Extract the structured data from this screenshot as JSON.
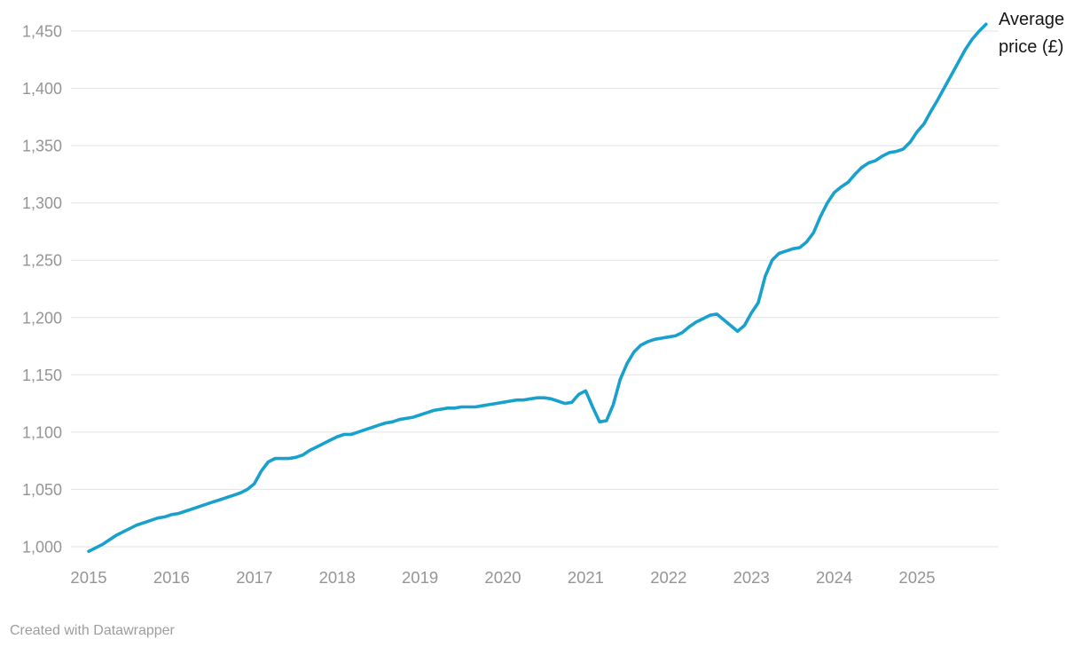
{
  "chart_data": {
    "type": "line",
    "title": "",
    "ylabel": "Average price (£)",
    "xlabel": "",
    "grid": "horizontal-only",
    "legend_position": "end-of-line direct label, top right",
    "line_color": "#18a1cd",
    "grid_color": "#e2e2e2",
    "tick_label_color": "#959595",
    "x_tick_labels": [
      "2015",
      "2016",
      "2017",
      "2018",
      "2019",
      "2020",
      "2021",
      "2022",
      "2023",
      "2024",
      "2025"
    ],
    "y_ticks": [
      1000,
      1050,
      1100,
      1150,
      1200,
      1250,
      1300,
      1350,
      1400,
      1450
    ],
    "y_tick_labels": [
      "1,000",
      "1,050",
      "1,100",
      "1,150",
      "1,200",
      "1,250",
      "1,300",
      "1,350",
      "1,400",
      "1,450"
    ],
    "ylim": [
      993,
      1464
    ],
    "xlim_years": [
      2015.0,
      2025.95
    ],
    "series": [
      {
        "name": "Average price (£)",
        "start": "2015-01",
        "end": "2025-11",
        "frequency": "monthly",
        "values": [
          996,
          999,
          1002,
          1006,
          1010,
          1013,
          1016,
          1019,
          1021,
          1023,
          1025,
          1026,
          1028,
          1029,
          1031,
          1033,
          1035,
          1037,
          1039,
          1041,
          1043,
          1045,
          1047,
          1050,
          1055,
          1066,
          1074,
          1077,
          1077,
          1077,
          1078,
          1080,
          1084,
          1087,
          1090,
          1093,
          1096,
          1098,
          1098,
          1100,
          1102,
          1104,
          1106,
          1108,
          1109,
          1111,
          1112,
          1113,
          1115,
          1117,
          1119,
          1120,
          1121,
          1121,
          1122,
          1122,
          1122,
          1123,
          1124,
          1125,
          1126,
          1127,
          1128,
          1128,
          1129,
          1130,
          1130,
          1129,
          1127,
          1125,
          1126,
          1133,
          1136,
          1122,
          1109,
          1110,
          1124,
          1146,
          1160,
          1170,
          1176,
          1179,
          1181,
          1182,
          1183,
          1184,
          1187,
          1192,
          1196,
          1199,
          1202,
          1203,
          1198,
          1193,
          1188,
          1193,
          1204,
          1213,
          1236,
          1250,
          1256,
          1258,
          1260,
          1261,
          1266,
          1274,
          1288,
          1300,
          1309,
          1314,
          1318,
          1325,
          1331,
          1335,
          1337,
          1341,
          1344,
          1345,
          1347,
          1353,
          1362,
          1369,
          1380,
          1390,
          1401,
          1412,
          1423,
          1434,
          1443,
          1450,
          1456
        ]
      }
    ]
  },
  "labels": {
    "series_label": "Average price (£)",
    "credit": "Created with Datawrapper"
  }
}
